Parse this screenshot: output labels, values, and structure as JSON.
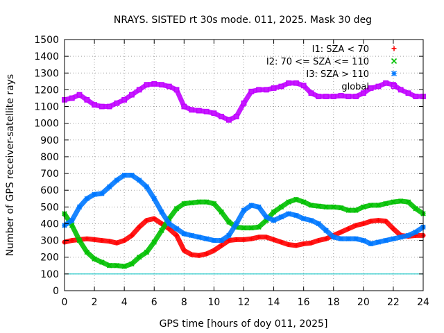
{
  "chart_data": {
    "type": "scatter",
    "title": "NRAYS. SISTED rt 30s mode. 011, 2025. Mask 30 deg",
    "xlabel": "GPS time [hours of doy 011, 2025]",
    "ylabel": "Number of GPS receiver-satellite rays",
    "xlim": [
      0,
      24
    ],
    "ylim": [
      0,
      1500
    ],
    "xticks": [
      "0",
      "2",
      "4",
      "6",
      "8",
      "10",
      "12",
      "14",
      "16",
      "18",
      "20",
      "22",
      "24"
    ],
    "yticks": [
      "0",
      "100",
      "200",
      "300",
      "400",
      "500",
      "600",
      "700",
      "800",
      "900",
      "1000",
      "1100",
      "1200",
      "1300",
      "1400",
      "1500"
    ],
    "grid": true,
    "legend_position": "top-right",
    "threshold": {
      "value": 100,
      "color": "#00c0c0"
    },
    "series": [
      {
        "name": "I1: SZA < 70",
        "color": "#ff0000",
        "marker": "+",
        "x": [
          0,
          0.5,
          1,
          1.5,
          2,
          2.5,
          3,
          3.5,
          4,
          4.5,
          5,
          5.5,
          6,
          6.5,
          7,
          7.5,
          8,
          8.5,
          9,
          9.5,
          10,
          10.5,
          11,
          11.5,
          12,
          12.5,
          13,
          13.5,
          14,
          14.5,
          15,
          15.5,
          16,
          16.5,
          17,
          17.5,
          18,
          18.5,
          19,
          19.5,
          20,
          20.5,
          21,
          21.5,
          22,
          22.5,
          23,
          23.5,
          24
        ],
        "y": [
          290,
          300,
          305,
          310,
          305,
          300,
          295,
          285,
          300,
          330,
          380,
          420,
          430,
          400,
          370,
          330,
          240,
          215,
          210,
          220,
          240,
          270,
          300,
          305,
          305,
          310,
          320,
          320,
          305,
          290,
          275,
          270,
          280,
          285,
          300,
          310,
          330,
          350,
          370,
          390,
          400,
          415,
          420,
          415,
          370,
          330,
          325,
          330,
          330
        ]
      },
      {
        "name": "I2: 70 <= SZA <= 110",
        "color": "#00c000",
        "marker": "x",
        "x": [
          0,
          0.5,
          1,
          1.5,
          2,
          2.5,
          3,
          3.5,
          4,
          4.5,
          5,
          5.5,
          6,
          6.5,
          7,
          7.5,
          8,
          8.5,
          9,
          9.5,
          10,
          10.5,
          11,
          11.5,
          12,
          12.5,
          13,
          13.5,
          14,
          14.5,
          15,
          15.5,
          16,
          16.5,
          17,
          17.5,
          18,
          18.5,
          19,
          19.5,
          20,
          20.5,
          21,
          21.5,
          22,
          22.5,
          23,
          23.5,
          24
        ],
        "y": [
          460,
          390,
          300,
          230,
          190,
          170,
          150,
          150,
          145,
          160,
          200,
          230,
          290,
          360,
          430,
          490,
          520,
          525,
          530,
          530,
          520,
          470,
          410,
          380,
          375,
          375,
          380,
          420,
          470,
          500,
          530,
          545,
          530,
          510,
          505,
          500,
          500,
          495,
          480,
          480,
          500,
          510,
          510,
          520,
          530,
          535,
          530,
          490,
          460
        ]
      },
      {
        "name": "I3: SZA > 110",
        "color": "#0078ff",
        "marker": "*",
        "x": [
          0,
          0.5,
          1,
          1.5,
          2,
          2.5,
          3,
          3.5,
          4,
          4.5,
          5,
          5.5,
          6,
          6.5,
          7,
          7.5,
          8,
          8.5,
          9,
          9.5,
          10,
          10.5,
          11,
          11.5,
          12,
          12.5,
          13,
          13.5,
          14,
          14.5,
          15,
          15.5,
          16,
          16.5,
          17,
          17.5,
          18,
          18.5,
          19,
          19.5,
          20,
          20.5,
          21,
          21.5,
          22,
          22.5,
          23,
          23.5,
          24
        ],
        "y": [
          390,
          420,
          500,
          550,
          575,
          580,
          620,
          660,
          690,
          690,
          660,
          620,
          550,
          470,
          400,
          370,
          340,
          330,
          320,
          310,
          300,
          300,
          330,
          400,
          480,
          510,
          500,
          440,
          420,
          440,
          460,
          450,
          430,
          420,
          400,
          360,
          320,
          310,
          310,
          310,
          300,
          280,
          290,
          300,
          310,
          320,
          330,
          350,
          380
        ]
      },
      {
        "name": "global",
        "color": "#c000ff",
        "marker": "square",
        "x": [
          0,
          0.5,
          1,
          1.5,
          2,
          2.5,
          3,
          3.5,
          4,
          4.5,
          5,
          5.5,
          6,
          6.5,
          7,
          7.5,
          8,
          8.5,
          9,
          9.5,
          10,
          10.5,
          11,
          11.5,
          12,
          12.5,
          13,
          13.5,
          14,
          14.5,
          15,
          15.5,
          16,
          16.5,
          17,
          17.5,
          18,
          18.5,
          19,
          19.5,
          20,
          20.5,
          21,
          21.5,
          22,
          22.5,
          23,
          23.5,
          24
        ],
        "y": [
          1140,
          1150,
          1170,
          1140,
          1110,
          1100,
          1100,
          1120,
          1140,
          1170,
          1200,
          1230,
          1235,
          1230,
          1220,
          1200,
          1100,
          1080,
          1075,
          1070,
          1060,
          1040,
          1020,
          1040,
          1120,
          1190,
          1200,
          1200,
          1210,
          1220,
          1240,
          1240,
          1225,
          1180,
          1160,
          1160,
          1160,
          1165,
          1160,
          1160,
          1180,
          1210,
          1220,
          1240,
          1230,
          1200,
          1180,
          1160,
          1160
        ]
      }
    ]
  }
}
